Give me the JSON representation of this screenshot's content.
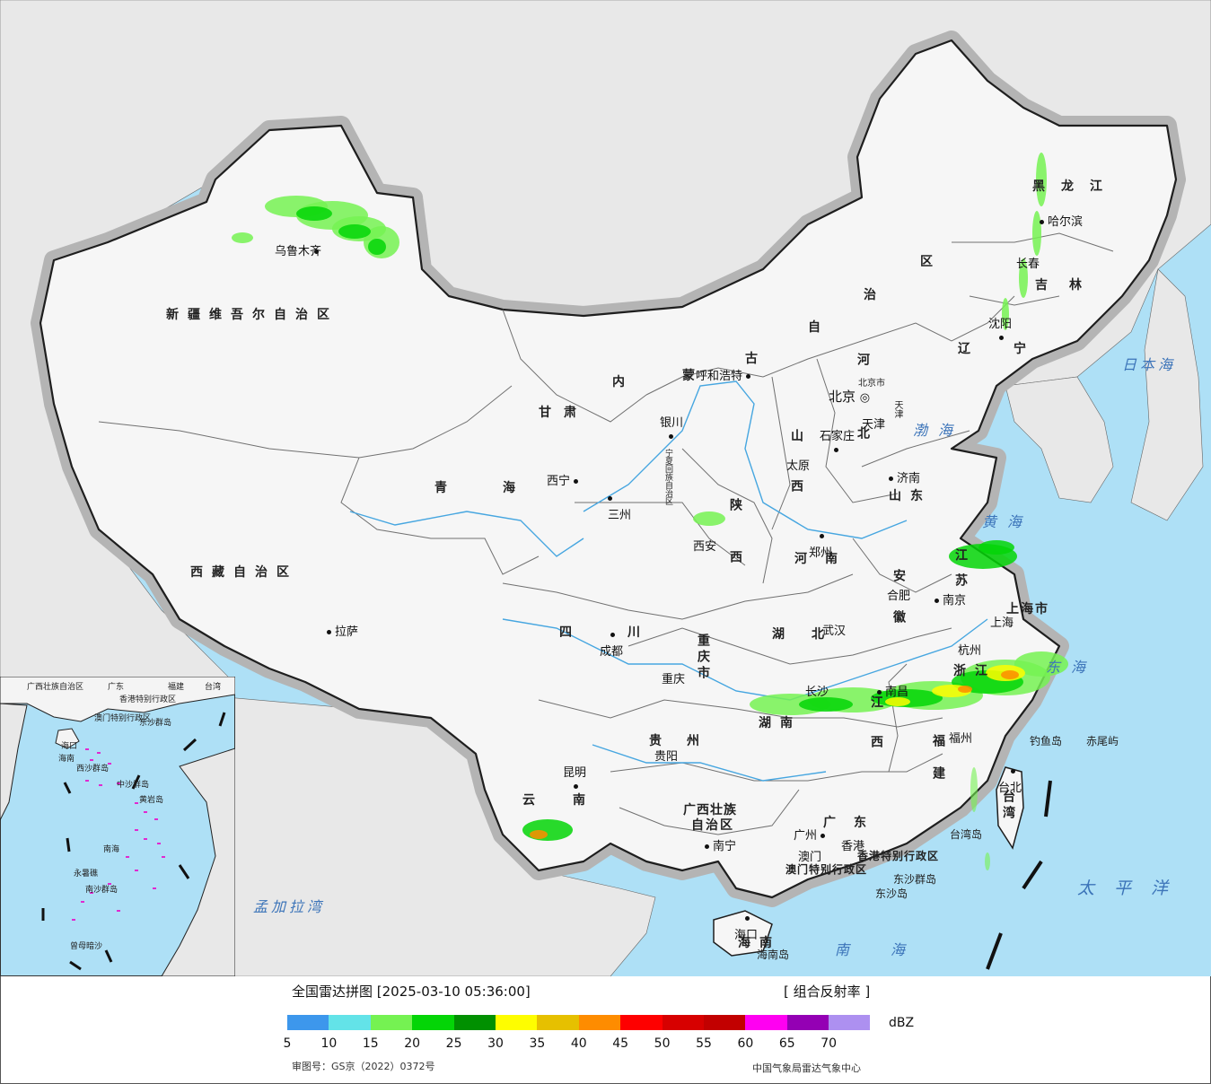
{
  "colors": {
    "sea": "#aee0f6",
    "neighbor_land": "#e8e8e8",
    "china_land": "#f6f6f6",
    "border": "#1e1e1e",
    "halo": "#b4b4b4",
    "river": "#46a6e0"
  },
  "legend": {
    "title": "全国雷达拼图 [2025-03-10 05:36:00]",
    "product": "[ 组合反射率 ]",
    "unit": "dBZ",
    "colors": [
      "#3d97ec",
      "#63e3e8",
      "#75f252",
      "#04d507",
      "#019001",
      "#fefd00",
      "#e6c000",
      "#fe8c00",
      "#fe0000",
      "#d70000",
      "#c20000",
      "#ff00f1",
      "#9400b4",
      "#ad90f0"
    ],
    "ticks": [
      "5",
      "10",
      "15",
      "20",
      "25",
      "30",
      "35",
      "40",
      "45",
      "50",
      "55",
      "60",
      "65",
      "70"
    ],
    "approval": "审图号：GS京（2022）0372号",
    "source": "中国气象局雷达气象中心"
  },
  "provinces": [
    {
      "id": "xinjiang",
      "text": "新疆维吾尔自治区"
    },
    {
      "id": "xizang",
      "text": "西藏自治区"
    },
    {
      "id": "qinghai",
      "text": "青海"
    },
    {
      "id": "gansu",
      "text": "甘肃"
    },
    {
      "id": "neimenggu-1",
      "text": "内"
    },
    {
      "id": "neimenggu-2",
      "text": "蒙"
    },
    {
      "id": "neimenggu-3",
      "text": "古"
    },
    {
      "id": "neimenggu-4",
      "text": "自"
    },
    {
      "id": "neimenggu-5",
      "text": "治"
    },
    {
      "id": "neimenggu-6",
      "text": "区"
    },
    {
      "id": "heilongjiang",
      "text": "黑龙江"
    },
    {
      "id": "jilin",
      "text": "吉林"
    },
    {
      "id": "liaoning",
      "text": "辽宁"
    },
    {
      "id": "hebei",
      "text": "河北"
    },
    {
      "id": "shandong",
      "text": "山东"
    },
    {
      "id": "shanxi",
      "text": "山西"
    },
    {
      "id": "shaanxi",
      "text": "陕西"
    },
    {
      "id": "henan",
      "text": "河南"
    },
    {
      "id": "sichuan",
      "text": "四川"
    },
    {
      "id": "chongqing",
      "text": "重庆市"
    },
    {
      "id": "hubei",
      "text": "湖北"
    },
    {
      "id": "anhui",
      "text": "安徽"
    },
    {
      "id": "jiangsu",
      "text": "江苏"
    },
    {
      "id": "zhejiang",
      "text": "浙江"
    },
    {
      "id": "jiangxi",
      "text": "江西"
    },
    {
      "id": "hunan",
      "text": "湖南"
    },
    {
      "id": "guizhou",
      "text": "贵州"
    },
    {
      "id": "yunnan",
      "text": "云南"
    },
    {
      "id": "fujian",
      "text": "福建"
    },
    {
      "id": "guangdong",
      "text": "广东"
    },
    {
      "id": "guangxi-1",
      "text": "广西壮族"
    },
    {
      "id": "guangxi-2",
      "text": "自治区"
    },
    {
      "id": "hainan",
      "text": "海南"
    },
    {
      "id": "taiwan",
      "text": "台湾"
    },
    {
      "id": "shanghai",
      "text": "上海市"
    },
    {
      "id": "ningxia",
      "text": "宁夏回族自治区"
    },
    {
      "id": "hongkong",
      "text": "香港特别行政区"
    },
    {
      "id": "macao",
      "text": "澳门特别行政区"
    }
  ],
  "cities": [
    {
      "id": "urumqi",
      "text": "乌鲁木齐"
    },
    {
      "id": "lhasa",
      "text": "拉萨"
    },
    {
      "id": "xining",
      "text": "西宁"
    },
    {
      "id": "lanzhou",
      "text": "三州"
    },
    {
      "id": "yinchuan",
      "text": "银川"
    },
    {
      "id": "hohhot",
      "text": "呼和浩特"
    },
    {
      "id": "beijing",
      "text": "北京"
    },
    {
      "id": "beijingshi",
      "text": "北京市"
    },
    {
      "id": "tianjin",
      "text": "天津"
    },
    {
      "id": "tianjinshi",
      "text": "天津"
    },
    {
      "id": "shijiazhuang",
      "text": "石家庄"
    },
    {
      "id": "taiyuan",
      "text": "太原"
    },
    {
      "id": "jinan",
      "text": "济南"
    },
    {
      "id": "zhengzhou",
      "text": "郑州"
    },
    {
      "id": "xian",
      "text": "西安"
    },
    {
      "id": "chengdu",
      "text": "成都"
    },
    {
      "id": "chongqing-city",
      "text": "重庆"
    },
    {
      "id": "wuhan",
      "text": "武汉"
    },
    {
      "id": "hefei",
      "text": "合肥"
    },
    {
      "id": "nanjing",
      "text": "南京"
    },
    {
      "id": "shanghai-city",
      "text": "上海"
    },
    {
      "id": "hangzhou",
      "text": "杭州"
    },
    {
      "id": "nanchang",
      "text": "南昌"
    },
    {
      "id": "changsha",
      "text": "长沙"
    },
    {
      "id": "guiyang",
      "text": "贵阳"
    },
    {
      "id": "kunming",
      "text": "昆明"
    },
    {
      "id": "nanning",
      "text": "南宁"
    },
    {
      "id": "guangzhou",
      "text": "广州"
    },
    {
      "id": "hongkong-city",
      "text": "香港"
    },
    {
      "id": "macao-city",
      "text": "澳门"
    },
    {
      "id": "fuzhou",
      "text": "福州"
    },
    {
      "id": "taipei",
      "text": "台北"
    },
    {
      "id": "haikou",
      "text": "海口"
    },
    {
      "id": "harbin",
      "text": "哈尔滨"
    },
    {
      "id": "changchun",
      "text": "长春"
    },
    {
      "id": "shenyang",
      "text": "沈阳"
    }
  ],
  "seas": [
    {
      "id": "bohai",
      "text": "渤海"
    },
    {
      "id": "huanghai",
      "text": "黄海"
    },
    {
      "id": "donghai",
      "text": "东海"
    },
    {
      "id": "nanhai",
      "text": "南海"
    },
    {
      "id": "japan-sea",
      "text": "日本海"
    },
    {
      "id": "pacific",
      "text": "太平洋"
    },
    {
      "id": "bengal",
      "text": "孟加拉湾"
    }
  ],
  "islands": [
    {
      "id": "diaoyu",
      "text": "钓鱼岛"
    },
    {
      "id": "chiwei",
      "text": "赤尾屿"
    },
    {
      "id": "taiwan-island",
      "text": "台湾岛"
    },
    {
      "id": "dongsha",
      "text": "东沙群岛"
    },
    {
      "id": "dongsha-2",
      "text": "东沙岛"
    },
    {
      "id": "hainan-island",
      "text": "海南岛"
    }
  ],
  "inset": {
    "labels": [
      "广西壮族自治区",
      "广东",
      "福建",
      "台湾",
      "海口",
      "海南",
      "香港特别行政区",
      "澳门特别行政区",
      "东沙群岛",
      "西沙群岛",
      "中沙群岛",
      "黄岩岛",
      "南海",
      "南沙群岛",
      "永暑礁",
      "曾母暗沙"
    ]
  }
}
